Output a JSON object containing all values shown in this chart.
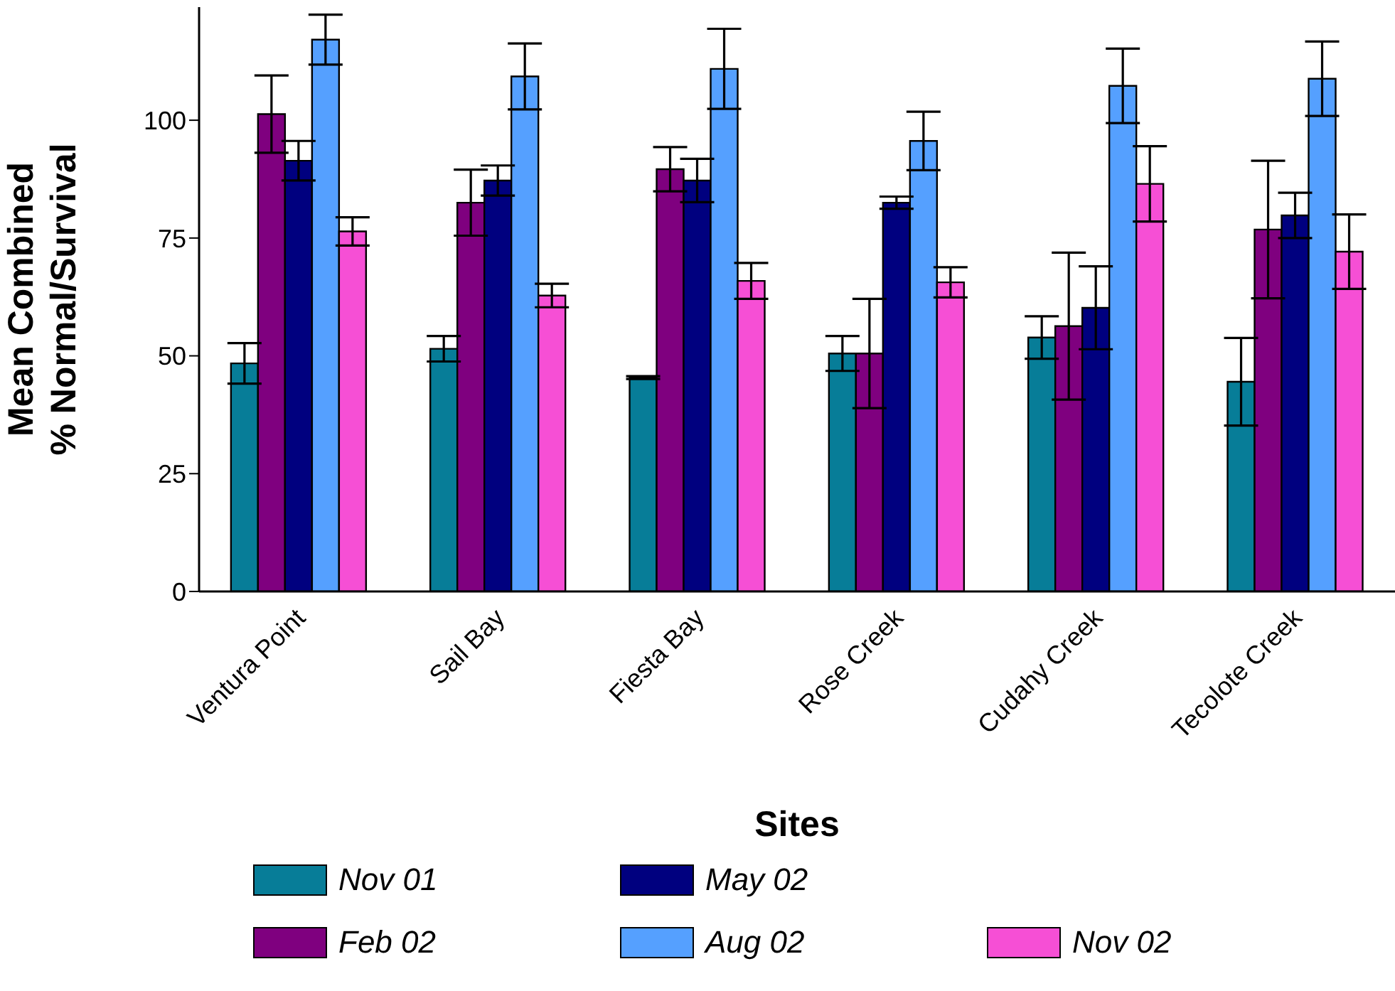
{
  "chart_data": {
    "type": "bar",
    "xlabel": "Sites",
    "ylabel": "Mean Combined\n% Normal/Survival",
    "categories": [
      "Ventura Point",
      "Sail Bay",
      "Fiesta Bay",
      "Rose Creek",
      "Cudahy Creek",
      "Tecolote Creek"
    ],
    "series": [
      {
        "name": "Nov 01",
        "color": "#077d98",
        "values": [
          48.4,
          51.5,
          45.4,
          50.5,
          53.9,
          44.5
        ],
        "errors": [
          4.3,
          2.7,
          0.3,
          3.7,
          4.5,
          9.3
        ]
      },
      {
        "name": "Feb 02",
        "color": "#7f007f",
        "values": [
          101.3,
          82.5,
          89.6,
          50.5,
          56.3,
          76.8
        ],
        "errors": [
          8.2,
          7,
          4.7,
          11.6,
          15.6,
          14.6
        ]
      },
      {
        "name": "May 02",
        "color": "#00007f",
        "values": [
          91.4,
          87.2,
          87.2,
          82.5,
          60.2,
          79.8
        ],
        "errors": [
          4.2,
          3.2,
          4.6,
          1.3,
          8.8,
          4.8
        ]
      },
      {
        "name": "Aug 02",
        "color": "#55a0ff",
        "values": [
          117.1,
          109.3,
          110.9,
          95.6,
          107.3,
          108.8
        ],
        "errors": [
          5.3,
          7,
          8.5,
          6.2,
          7.9,
          7.9
        ]
      },
      {
        "name": "Nov 02",
        "color": "#f64fd5",
        "values": [
          76.4,
          62.8,
          65.9,
          65.6,
          86.5,
          72.1
        ],
        "errors": [
          3,
          2.5,
          3.8,
          3.2,
          8,
          7.9
        ]
      }
    ],
    "ylim": [
      0,
      124
    ],
    "yticks": [
      0,
      25,
      50,
      75,
      100
    ],
    "grid": false,
    "legend": "bottom"
  }
}
